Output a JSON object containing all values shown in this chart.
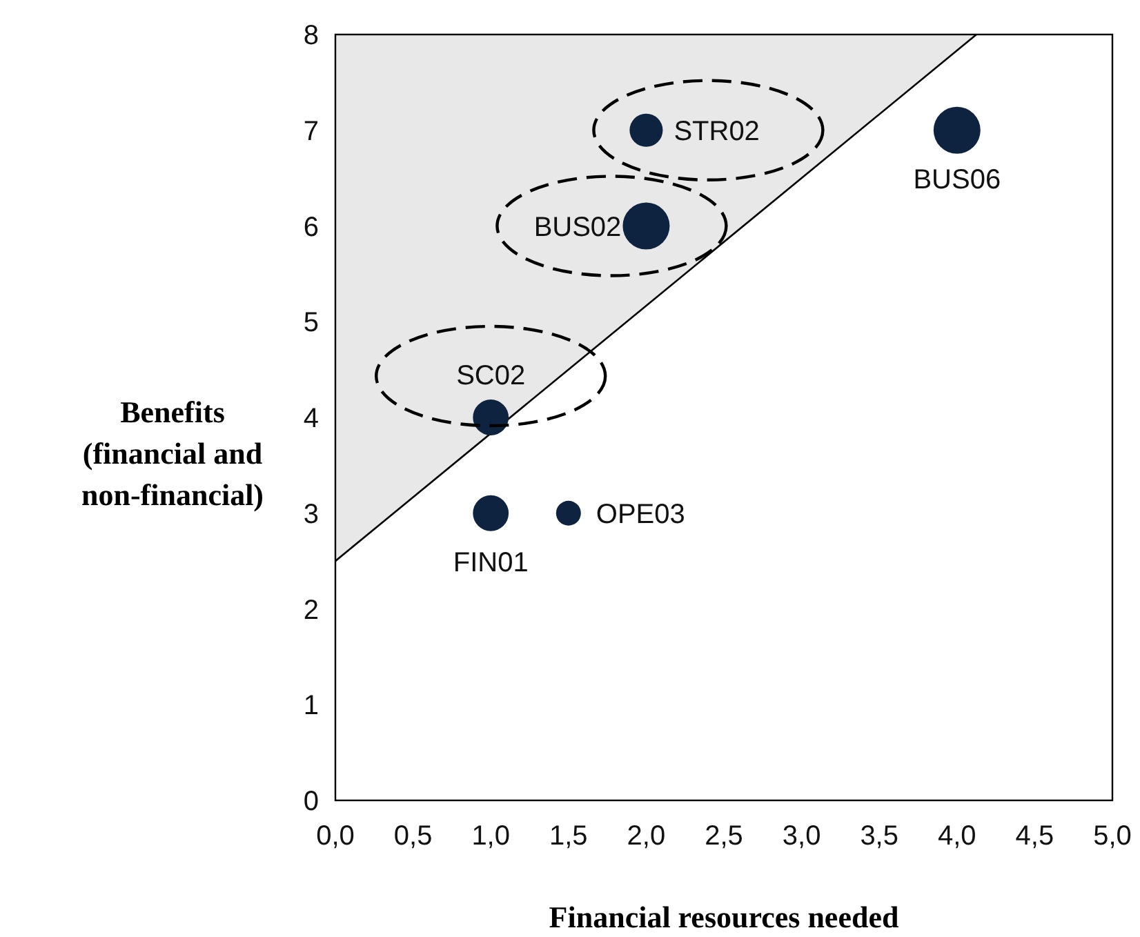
{
  "chart_data": {
    "type": "bubble",
    "xlabel": "Financial resources needed",
    "ylabel": "Benefits (financial and non-financial)",
    "xlim": [
      0,
      5
    ],
    "ylim": [
      0,
      8
    ],
    "xticks": [
      {
        "value": 0,
        "label": "0,0"
      },
      {
        "value": 0.5,
        "label": "0,5"
      },
      {
        "value": 1,
        "label": "1,0"
      },
      {
        "value": 1.5,
        "label": "1,5"
      },
      {
        "value": 2,
        "label": "2,0"
      },
      {
        "value": 2.5,
        "label": "2,5"
      },
      {
        "value": 3,
        "label": "3,0"
      },
      {
        "value": 3.5,
        "label": "3,5"
      },
      {
        "value": 4,
        "label": "4,0"
      },
      {
        "value": 4.5,
        "label": "4,5"
      },
      {
        "value": 5,
        "label": "5,0"
      }
    ],
    "yticks": [
      0,
      1,
      2,
      3,
      4,
      5,
      6,
      7,
      8
    ],
    "grid": false,
    "series": [
      {
        "type": "line",
        "color": "#000000",
        "x": [
          0,
          4.125
        ],
        "values": [
          2.5,
          8
        ],
        "lower": [
          2.5,
          8
        ],
        "upper": [
          8,
          8
        ]
      },
      {
        "color": "#0d2340",
        "x": [
          2,
          2,
          4,
          1,
          1,
          1.5
        ],
        "values": [
          7,
          6,
          7,
          4,
          3,
          3
        ],
        "sizes": [
          0.5,
          1,
          1,
          0.58,
          0.58,
          0.28
        ]
      }
    ],
    "annotations": [
      {
        "text": "STR02",
        "x": 2,
        "y": 7
      },
      {
        "text": "BUS02",
        "x": 2,
        "y": 6
      },
      {
        "text": "BUS06",
        "x": 4,
        "y": 7
      },
      {
        "text": "SC02",
        "x": 1,
        "y": 4
      },
      {
        "text": "FIN01",
        "x": 1,
        "y": 3
      },
      {
        "text": "OPE03",
        "x": 1.5,
        "y": 3
      }
    ]
  }
}
